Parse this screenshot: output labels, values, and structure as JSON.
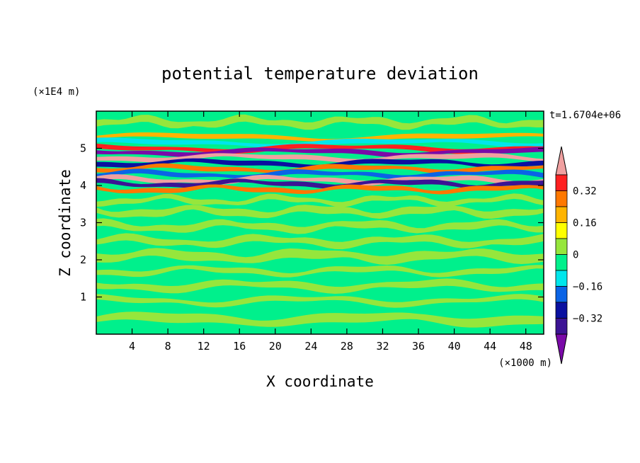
{
  "chart_data": {
    "type": "heatmap",
    "title": "potential temperature deviation",
    "xlabel": "X coordinate",
    "ylabel": "Z coordinate",
    "x_unit": "(×1000 m)",
    "y_unit": "(×1E4 m)",
    "time_label": "t=1.6704e+06",
    "xlim": [
      0,
      50
    ],
    "ylim": [
      0,
      6
    ],
    "x_ticks": [
      4,
      8,
      12,
      16,
      20,
      24,
      28,
      32,
      36,
      40,
      44,
      48
    ],
    "y_ticks": [
      1,
      2,
      3,
      4,
      5
    ],
    "colorbar": {
      "levels": [
        -0.48,
        -0.4,
        -0.32,
        -0.24,
        -0.16,
        -0.08,
        0,
        0.08,
        0.16,
        0.24,
        0.32,
        0.4,
        0.48
      ],
      "tick_labels": [
        "0.32",
        "0.16",
        "0",
        "−0.16",
        "−0.32"
      ],
      "tick_values": [
        0.32,
        0.16,
        0,
        -0.16,
        -0.32
      ],
      "colors": [
        "#7a0aa8",
        "#3c1494",
        "#0a10a0",
        "#0a64e6",
        "#00e6ec",
        "#00f08c",
        "#96e63c",
        "#ffff00",
        "#ffb400",
        "#ff7800",
        "#ff2020",
        "#f0a0a0"
      ],
      "extend": "both"
    },
    "bands": [
      {
        "z": 5.3,
        "value": 0.2
      },
      {
        "z": 5.15,
        "value": -0.1
      },
      {
        "z": 5.0,
        "value": 0.35
      },
      {
        "z": 4.9,
        "value": -0.45
      },
      {
        "z": 4.75,
        "value": 0.4
      },
      {
        "z": 4.6,
        "value": -0.3
      },
      {
        "z": 4.45,
        "value": 0.25
      },
      {
        "z": 4.3,
        "value": -0.2
      },
      {
        "z": 4.15,
        "value": 0.4
      },
      {
        "z": 4.05,
        "value": -0.4
      },
      {
        "z": 3.9,
        "value": 0.3
      }
    ]
  }
}
